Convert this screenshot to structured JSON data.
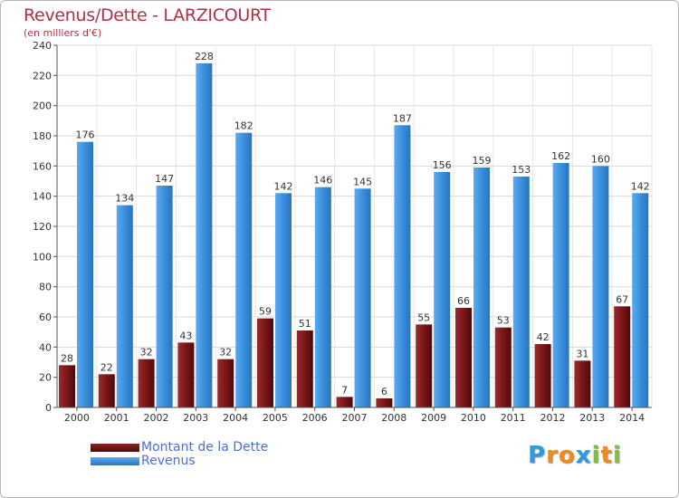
{
  "header": {
    "title": "Revenus/Dette - LARZICOURT",
    "subtitle": "(en milliers d'€)"
  },
  "colors": {
    "title": "#b03045",
    "debt": "#7a1618",
    "revenue": "#3a8fdc",
    "legend_text": "#4a6fd6"
  },
  "legend": {
    "items": [
      {
        "label": "Montant de la Dette",
        "color": "#6b1214"
      },
      {
        "label": "Revenus",
        "color": "#3a8fdc"
      }
    ]
  },
  "logo": {
    "text": "Proxiti",
    "letters": [
      {
        "ch": "P",
        "color": "#2d9be0"
      },
      {
        "ch": "r",
        "color": "#f08a1c"
      },
      {
        "ch": "o",
        "color": "#f08a1c"
      },
      {
        "ch": "x",
        "color": "#2d9be0"
      },
      {
        "ch": "i",
        "color": "#7bc043"
      },
      {
        "ch": "t",
        "color": "#f08a1c"
      },
      {
        "ch": "i",
        "color": "#7bc043"
      }
    ]
  },
  "chart_data": {
    "type": "bar",
    "title": "Revenus/Dette - LARZICOURT",
    "subtitle": "(en milliers d'€)",
    "categories": [
      "2000",
      "2001",
      "2002",
      "2003",
      "2004",
      "2005",
      "2006",
      "2007",
      "2008",
      "2009",
      "2010",
      "2011",
      "2012",
      "2013",
      "2014"
    ],
    "series": [
      {
        "name": "Montant de la Dette",
        "values": [
          28,
          22,
          32,
          43,
          32,
          59,
          51,
          7,
          6,
          55,
          66,
          53,
          42,
          31,
          67
        ]
      },
      {
        "name": "Revenus",
        "values": [
          176,
          134,
          147,
          228,
          182,
          142,
          146,
          145,
          187,
          156,
          159,
          153,
          162,
          160,
          142
        ]
      }
    ],
    "ylim": [
      0,
      240
    ],
    "yticks": [
      0,
      20,
      40,
      60,
      80,
      100,
      120,
      140,
      160,
      180,
      200,
      220,
      240
    ],
    "grid": true,
    "legend_position": "bottom-left"
  }
}
